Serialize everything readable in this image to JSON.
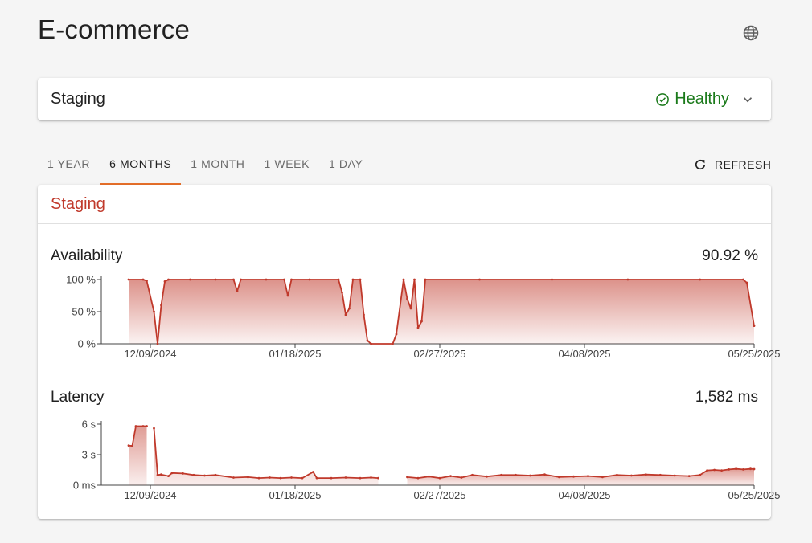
{
  "header": {
    "title": "E-commerce",
    "language_icon": "globe-icon"
  },
  "environment": {
    "name": "Staging",
    "status": "Healthy",
    "status_color": "#1b7a1b",
    "status_icon": "check-circle-icon",
    "expand_icon": "chevron-down-icon"
  },
  "tabs": [
    {
      "label": "1 YEAR",
      "active": false
    },
    {
      "label": "6 MONTHS",
      "active": true
    },
    {
      "label": "1 MONTH",
      "active": false
    },
    {
      "label": "1 WEEK",
      "active": false
    },
    {
      "label": "1 DAY",
      "active": false
    }
  ],
  "refresh": {
    "label": "REFRESH",
    "icon": "refresh-icon"
  },
  "panel": {
    "title": "Staging",
    "title_color": "#c0392b",
    "accent_color": "#e8702a",
    "series_color": "#c0392b"
  },
  "chart_data": [
    {
      "type": "area",
      "title": "Availability",
      "summary": "90.92 %",
      "y_ticks": [
        "100 %",
        "50 %",
        "0 %"
      ],
      "ylim": [
        0,
        100
      ],
      "x_ticks": [
        "12/09/2024",
        "01/18/2025",
        "02/27/2025",
        "04/08/2025",
        "05/25/2025"
      ],
      "x_range": [
        "2024-11-29",
        "2025-05-25"
      ],
      "unit": "%",
      "points": [
        [
          "2024-12-03",
          100
        ],
        [
          "2024-12-07",
          100
        ],
        [
          "2024-12-08",
          98
        ],
        [
          "2024-12-10",
          50
        ],
        [
          "2024-12-11",
          0
        ],
        [
          "2024-12-12",
          60
        ],
        [
          "2024-12-13",
          97
        ],
        [
          "2024-12-14",
          100
        ],
        [
          "2024-12-20",
          100
        ],
        [
          "2024-12-27",
          100
        ],
        [
          "2025-01-01",
          100
        ],
        [
          "2025-01-02",
          82
        ],
        [
          "2025-01-03",
          100
        ],
        [
          "2025-01-10",
          100
        ],
        [
          "2025-01-15",
          100
        ],
        [
          "2025-01-16",
          75
        ],
        [
          "2025-01-17",
          100
        ],
        [
          "2025-01-22",
          100
        ],
        [
          "2025-01-30",
          100
        ],
        [
          "2025-01-31",
          80
        ],
        [
          "2025-02-01",
          45
        ],
        [
          "2025-02-02",
          55
        ],
        [
          "2025-02-03",
          100
        ],
        [
          "2025-02-05",
          100
        ],
        [
          "2025-02-06",
          45
        ],
        [
          "2025-02-07",
          5
        ],
        [
          "2025-02-08",
          0
        ],
        [
          "2025-02-14",
          0
        ],
        [
          "2025-02-15",
          15
        ],
        [
          "2025-02-17",
          100
        ],
        [
          "2025-02-18",
          70
        ],
        [
          "2025-02-19",
          55
        ],
        [
          "2025-02-20",
          100
        ],
        [
          "2025-02-21",
          25
        ],
        [
          "2025-02-22",
          35
        ],
        [
          "2025-02-23",
          100
        ],
        [
          "2025-03-10",
          100
        ],
        [
          "2025-03-30",
          100
        ],
        [
          "2025-04-20",
          100
        ],
        [
          "2025-05-10",
          100
        ],
        [
          "2025-05-22",
          100
        ],
        [
          "2025-05-23",
          95
        ],
        [
          "2025-05-25",
          28
        ]
      ]
    },
    {
      "type": "area",
      "title": "Latency",
      "summary": "1,582 ms",
      "y_ticks": [
        "6 s",
        "3 s",
        "0 ms"
      ],
      "ylim": [
        0,
        6
      ],
      "x_ticks": [
        "12/09/2024",
        "01/18/2025",
        "02/27/2025",
        "04/08/2025",
        "05/25/2025"
      ],
      "x_range": [
        "2024-11-29",
        "2025-05-25"
      ],
      "unit": "s",
      "segments": [
        [
          [
            "2024-12-03",
            3.9
          ],
          [
            "2024-12-04",
            3.85
          ],
          [
            "2024-12-05",
            5.8
          ],
          [
            "2024-12-07",
            5.8
          ],
          [
            "2024-12-08",
            5.8
          ]
        ],
        [
          [
            "2024-12-10",
            5.6
          ],
          [
            "2024-12-11",
            1.0
          ],
          [
            "2024-12-12",
            1.05
          ],
          [
            "2024-12-14",
            0.9
          ],
          [
            "2024-12-15",
            1.2
          ],
          [
            "2024-12-18",
            1.15
          ],
          [
            "2024-12-21",
            1.0
          ],
          [
            "2024-12-24",
            0.95
          ],
          [
            "2024-12-27",
            1.0
          ],
          [
            "2025-01-01",
            0.75
          ],
          [
            "2025-01-05",
            0.8
          ],
          [
            "2025-01-08",
            0.7
          ],
          [
            "2025-01-11",
            0.75
          ],
          [
            "2025-01-14",
            0.7
          ],
          [
            "2025-01-17",
            0.75
          ],
          [
            "2025-01-20",
            0.7
          ],
          [
            "2025-01-23",
            1.3
          ],
          [
            "2025-01-24",
            0.7
          ],
          [
            "2025-01-28",
            0.7
          ],
          [
            "2025-02-01",
            0.75
          ],
          [
            "2025-02-05",
            0.7
          ],
          [
            "2025-02-08",
            0.75
          ],
          [
            "2025-02-10",
            0.7
          ]
        ],
        [
          [
            "2025-02-18",
            0.8
          ],
          [
            "2025-02-21",
            0.7
          ],
          [
            "2025-02-24",
            0.85
          ],
          [
            "2025-02-27",
            0.7
          ],
          [
            "2025-03-02",
            0.9
          ],
          [
            "2025-03-05",
            0.75
          ],
          [
            "2025-03-08",
            1.0
          ],
          [
            "2025-03-12",
            0.85
          ],
          [
            "2025-03-16",
            1.0
          ],
          [
            "2025-03-20",
            1.0
          ],
          [
            "2025-03-24",
            0.95
          ],
          [
            "2025-03-28",
            1.05
          ],
          [
            "2025-04-01",
            0.8
          ],
          [
            "2025-04-05",
            0.85
          ],
          [
            "2025-04-09",
            0.9
          ],
          [
            "2025-04-13",
            0.8
          ],
          [
            "2025-04-17",
            1.0
          ],
          [
            "2025-04-21",
            0.95
          ],
          [
            "2025-04-25",
            1.05
          ],
          [
            "2025-04-29",
            1.0
          ],
          [
            "2025-05-03",
            0.95
          ],
          [
            "2025-05-07",
            0.9
          ],
          [
            "2025-05-10",
            1.0
          ],
          [
            "2025-05-12",
            1.45
          ],
          [
            "2025-05-14",
            1.5
          ],
          [
            "2025-05-16",
            1.45
          ],
          [
            "2025-05-18",
            1.55
          ],
          [
            "2025-05-20",
            1.6
          ],
          [
            "2025-05-22",
            1.55
          ],
          [
            "2025-05-24",
            1.6
          ],
          [
            "2025-05-25",
            1.58
          ]
        ]
      ]
    }
  ]
}
